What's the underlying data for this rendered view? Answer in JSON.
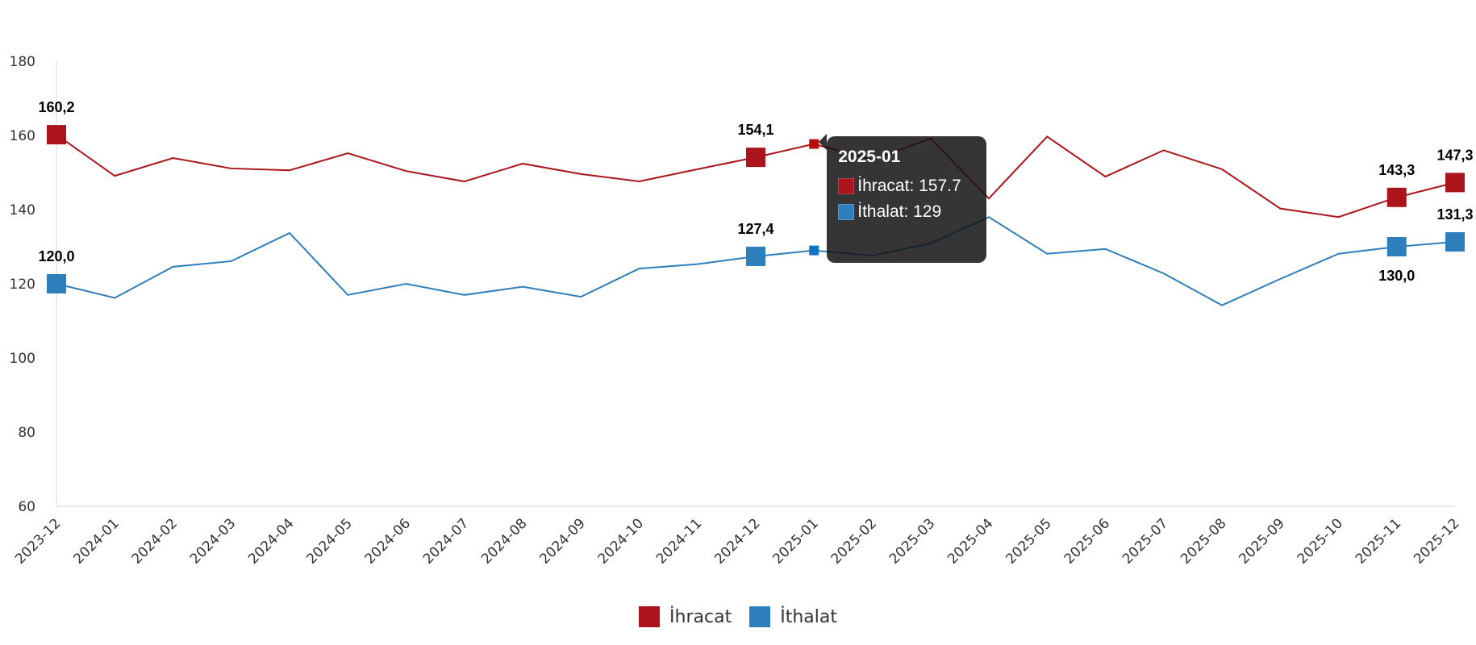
{
  "chart_data": {
    "type": "line",
    "categories": [
      "2023-12",
      "2024-01",
      "2024-02",
      "2024-03",
      "2024-04",
      "2024-05",
      "2024-06",
      "2024-07",
      "2024-08",
      "2024-09",
      "2024-10",
      "2024-11",
      "2024-12",
      "2025-01",
      "2025-02",
      "2025-03",
      "2025-04",
      "2025-05",
      "2025-06",
      "2025-07",
      "2025-08",
      "2025-09",
      "2025-10",
      "2025-11",
      "2025-12"
    ],
    "series": [
      {
        "name": "İhracat",
        "color": "#ab141a",
        "values": [
          160.2,
          149.1,
          153.9,
          151.1,
          150.6,
          155.2,
          150.4,
          147.6,
          152.4,
          149.6,
          147.6,
          150.9,
          154.1,
          157.7,
          153.4,
          159.2,
          143.0,
          159.7,
          148.9,
          156.0,
          150.9,
          140.3,
          138.0,
          143.3,
          147.3
        ]
      },
      {
        "name": "İthalat",
        "color": "#2f7ebc",
        "values": [
          120.0,
          116.2,
          124.6,
          126.1,
          133.7,
          117.0,
          120.0,
          117.0,
          119.2,
          116.5,
          124.1,
          125.3,
          127.4,
          129,
          127.6,
          130.9,
          138.0,
          128.1,
          129.4,
          122.8,
          114.2,
          121.3,
          128.1,
          130.0,
          131.3
        ]
      }
    ],
    "data_labels": [
      {
        "series": 0,
        "index": 0,
        "text": "160,2"
      },
      {
        "series": 0,
        "index": 12,
        "text": "154,1"
      },
      {
        "series": 0,
        "index": 23,
        "text": "143,3"
      },
      {
        "series": 0,
        "index": 24,
        "text": "147,3"
      },
      {
        "series": 1,
        "index": 0,
        "text": "120,0"
      },
      {
        "series": 1,
        "index": 12,
        "text": "127,4"
      },
      {
        "series": 1,
        "index": 23,
        "text": "130,0",
        "position": "below"
      },
      {
        "series": 1,
        "index": 24,
        "text": "131,3"
      }
    ],
    "yticks": [
      "60",
      "80",
      "100",
      "120",
      "140",
      "160",
      "180"
    ],
    "ylim": [
      60,
      180
    ],
    "grid": false,
    "legend_position": "bottom"
  },
  "tooltip": {
    "title": "2025-01",
    "rows": [
      {
        "label": "İhracat: 157.7",
        "color": "#ab141a"
      },
      {
        "label": "İthalat: 129",
        "color": "#2f7ebc"
      }
    ]
  },
  "legend": [
    {
      "label": "İhracat",
      "color": "#ab141a"
    },
    {
      "label": "İthalat",
      "color": "#2f7ebc"
    }
  ]
}
